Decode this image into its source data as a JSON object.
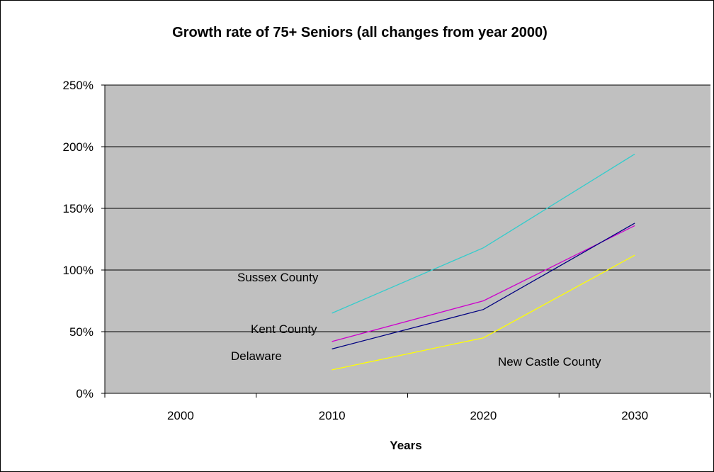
{
  "chart_data": {
    "type": "line",
    "title": "Growth rate of 75+ Seniors (all changes from year 2000)",
    "xlabel": "Years",
    "ylabel": "",
    "categories": [
      "2000",
      "2010",
      "2020",
      "2030"
    ],
    "y_ticks": [
      "0%",
      "50%",
      "100%",
      "150%",
      "200%",
      "250%"
    ],
    "ylim": [
      0,
      2.5
    ],
    "grid": true,
    "plot_background": "#c0c0c0",
    "series": [
      {
        "name": "Sussex County",
        "color": "#33cccc",
        "values": [
          null,
          0.65,
          1.18,
          1.94
        ]
      },
      {
        "name": "Kent County",
        "color": "#cc00cc",
        "values": [
          null,
          0.42,
          0.75,
          1.36
        ]
      },
      {
        "name": "Delaware",
        "color": "#000080",
        "values": [
          null,
          0.36,
          0.68,
          1.38
        ]
      },
      {
        "name": "New Castle County",
        "color": "#ffff00",
        "values": [
          null,
          0.19,
          0.45,
          1.12
        ]
      }
    ]
  }
}
